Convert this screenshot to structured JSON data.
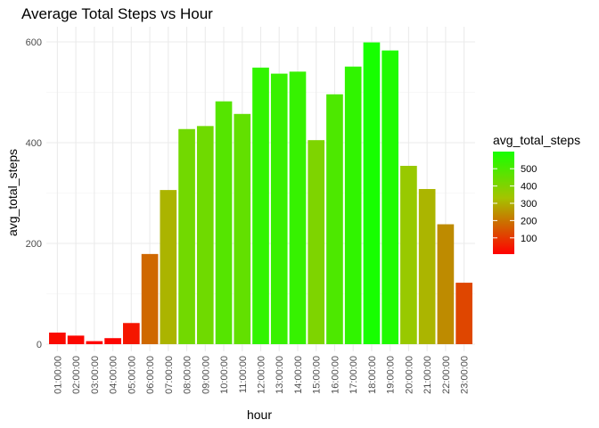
{
  "chart_data": {
    "type": "bar",
    "title": "Average Total Steps vs Hour",
    "xlabel": "hour",
    "ylabel": "avg_total_steps",
    "categories": [
      "01:00:00",
      "02:00:00",
      "03:00:00",
      "04:00:00",
      "05:00:00",
      "06:00:00",
      "07:00:00",
      "08:00:00",
      "09:00:00",
      "10:00:00",
      "11:00:00",
      "12:00:00",
      "13:00:00",
      "14:00:00",
      "15:00:00",
      "16:00:00",
      "17:00:00",
      "18:00:00",
      "19:00:00",
      "20:00:00",
      "21:00:00",
      "22:00:00",
      "23:00:00"
    ],
    "values": [
      23,
      17,
      6,
      12,
      42,
      179,
      306,
      427,
      433,
      482,
      457,
      549,
      537,
      541,
      405,
      496,
      551,
      599,
      583,
      354,
      308,
      238,
      122
    ],
    "ylim": [
      0,
      620
    ],
    "yticks": [
      0,
      200,
      400,
      600
    ],
    "grid": true,
    "legend": {
      "title": "avg_total_steps",
      "placement": "right",
      "labels": [
        100,
        200,
        300,
        400,
        500
      ],
      "low_color": "#ff0000",
      "mid_color": "#a4c400",
      "high_color": "#17ff00"
    }
  }
}
